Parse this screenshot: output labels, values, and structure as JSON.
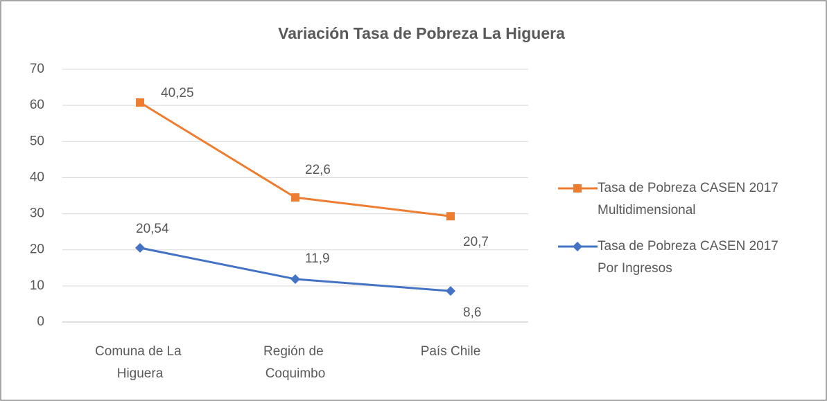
{
  "chart_data": {
    "type": "line",
    "stacked": true,
    "title": "Variación Tasa de Pobreza La Higuera",
    "categories": [
      "Comuna de La Higuera",
      "Región de Coquimbo",
      "País Chile"
    ],
    "series": [
      {
        "name": "Tasa de Pobreza CASEN 2017 Por Ingresos",
        "color": "#4472c4",
        "marker": "diamond",
        "values": [
          20.54,
          11.9,
          8.6
        ],
        "value_labels": [
          "20,54",
          "11,9",
          "8,6"
        ]
      },
      {
        "name": "Tasa de Pobreza CASEN 2017 Multidimensional",
        "color": "#ed7d31",
        "marker": "square",
        "values": [
          40.25,
          22.6,
          20.7
        ],
        "value_labels": [
          "40,25",
          "22,6",
          "20,7"
        ]
      }
    ],
    "ylim": [
      0,
      70
    ],
    "yticks": [
      0,
      10,
      20,
      30,
      40,
      50,
      60,
      70
    ],
    "grid": true,
    "legend": "right"
  }
}
